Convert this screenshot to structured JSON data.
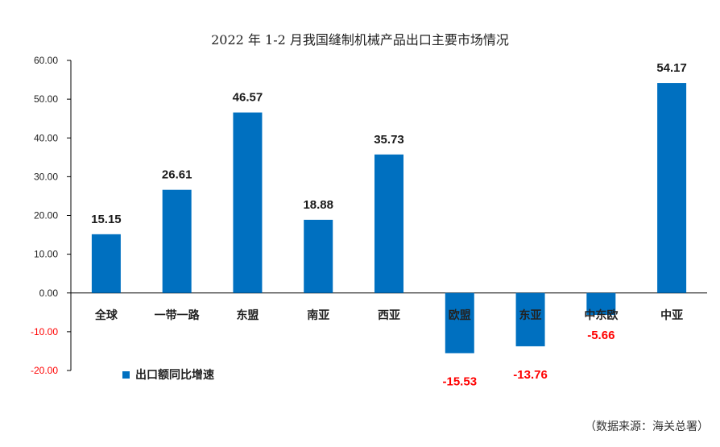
{
  "chart_data": {
    "type": "bar",
    "title": "2022 年 1-2 月我国缝制机械产品出口主要市场情况",
    "categories": [
      "全球",
      "一带一路",
      "东盟",
      "南亚",
      "西亚",
      "欧盟",
      "东亚",
      "中东欧",
      "中亚"
    ],
    "series": [
      {
        "name": "出口额同比增速",
        "values": [
          15.15,
          26.61,
          46.57,
          18.88,
          35.73,
          -15.53,
          -13.76,
          -5.66,
          54.17
        ]
      }
    ],
    "data_labels": [
      "15.15",
      "26.61",
      "46.57",
      "18.88",
      "35.73",
      "-15.53",
      "-13.76",
      "-5.66",
      "54.17"
    ],
    "ylim": [
      -20,
      60
    ],
    "yticks": [
      60,
      50,
      40,
      30,
      20,
      10,
      0,
      -10,
      -20
    ],
    "ytick_labels": [
      "60.00",
      "50.00",
      "40.00",
      "30.00",
      "20.00",
      "10.00",
      "0.00",
      "-10.00",
      "-20.00"
    ],
    "xlabel": "",
    "ylabel": "",
    "legend_position": "bottom-left",
    "source_note": "（数据来源：海关总署）",
    "colors": {
      "bar": "#0070C0",
      "positive_label": "#1a1a1a",
      "negative_label": "#FF0000",
      "negative_tick": "#FF0000",
      "axis": "#000000",
      "tick_text": "#222222"
    }
  }
}
